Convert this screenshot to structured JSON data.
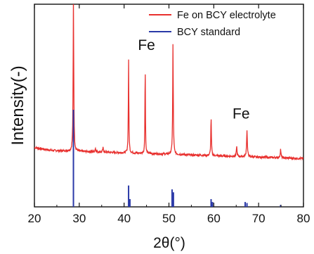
{
  "chart_data": {
    "type": "line",
    "title": "",
    "xlabel": "2θ(°)",
    "ylabel": "Intensity(-)",
    "xlim": [
      20,
      80
    ],
    "xticks": [
      20,
      30,
      40,
      50,
      60,
      70,
      80
    ],
    "yticks_shown": false,
    "grid": false,
    "legend_position": "top-right",
    "series": [
      {
        "name": "Fe on BCY electrolyte",
        "color": "#e8302e",
        "baseline": 0.19,
        "baseline_end": 0.13,
        "noise": 0.007,
        "peaks": [
          {
            "x": 28.7,
            "y": 1.08,
            "w": 0.16
          },
          {
            "x": 33.6,
            "y": 0.025,
            "w": 0.2
          },
          {
            "x": 35.3,
            "y": 0.03,
            "w": 0.2
          },
          {
            "x": 41.0,
            "y": 0.65,
            "w": 0.14
          },
          {
            "x": 44.7,
            "y": 0.61,
            "w": 0.12
          },
          {
            "x": 50.9,
            "y": 0.76,
            "w": 0.16
          },
          {
            "x": 59.4,
            "y": 0.26,
            "w": 0.16
          },
          {
            "x": 65.1,
            "y": 0.07,
            "w": 0.18
          },
          {
            "x": 67.4,
            "y": 0.18,
            "w": 0.2
          },
          {
            "x": 74.9,
            "y": 0.06,
            "w": 0.2
          }
        ]
      },
      {
        "name": "BCY standard",
        "color": "#2b3aa8",
        "type": "stick",
        "sticks": [
          {
            "x": 28.7,
            "y": 1.0
          },
          {
            "x": 41.0,
            "y": 0.22
          },
          {
            "x": 41.3,
            "y": 0.08
          },
          {
            "x": 50.7,
            "y": 0.18
          },
          {
            "x": 51.0,
            "y": 0.15
          },
          {
            "x": 59.4,
            "y": 0.08
          },
          {
            "x": 59.7,
            "y": 0.05
          },
          {
            "x": 67.0,
            "y": 0.05
          },
          {
            "x": 67.4,
            "y": 0.04
          },
          {
            "x": 74.9,
            "y": 0.02
          }
        ]
      }
    ],
    "annotations": [
      {
        "text": "Fe",
        "x": 45.0,
        "y_frac": 0.225
      },
      {
        "text": "Fe",
        "x": 66.1,
        "y_frac": 0.565
      }
    ]
  }
}
